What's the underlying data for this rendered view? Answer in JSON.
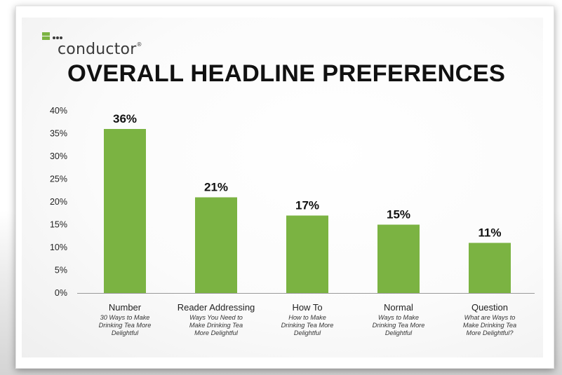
{
  "logo": {
    "name": "conductor",
    "registered_mark": "®"
  },
  "title": "OVERALL HEADLINE PREFERENCES",
  "colors": {
    "bar": "#7bb342",
    "text": "#1a1a1a",
    "logo_green": "#7bb342",
    "logo_dark": "#3a3a3a"
  },
  "chart_data": {
    "type": "bar",
    "title": "OVERALL HEADLINE PREFERENCES",
    "categories": [
      "Number",
      "Reader Addressing",
      "How To",
      "Normal",
      "Question"
    ],
    "subtitles": [
      [
        "30 Ways to Make",
        "Drinking Tea More",
        "Delightful"
      ],
      [
        "Ways You Need to",
        "Make Drinking Tea",
        "More Delightful"
      ],
      [
        "How to Make",
        "Drinking Tea More",
        "Delightful"
      ],
      [
        "Ways to Make",
        "Drinking Tea More",
        "Delightful"
      ],
      [
        "What are Ways to",
        "Make Drinking Tea",
        "More Delightful?"
      ]
    ],
    "values": [
      36,
      21,
      17,
      15,
      11
    ],
    "value_labels": [
      "36%",
      "21%",
      "17%",
      "15%",
      "11%"
    ],
    "ylim": [
      0,
      40
    ],
    "yticks": [
      "0%",
      "5%",
      "10%",
      "15%",
      "20%",
      "25%",
      "30%",
      "35%",
      "40%"
    ],
    "ytick_values": [
      0,
      5,
      10,
      15,
      20,
      25,
      30,
      35,
      40
    ],
    "grid": false,
    "legend": "none"
  }
}
